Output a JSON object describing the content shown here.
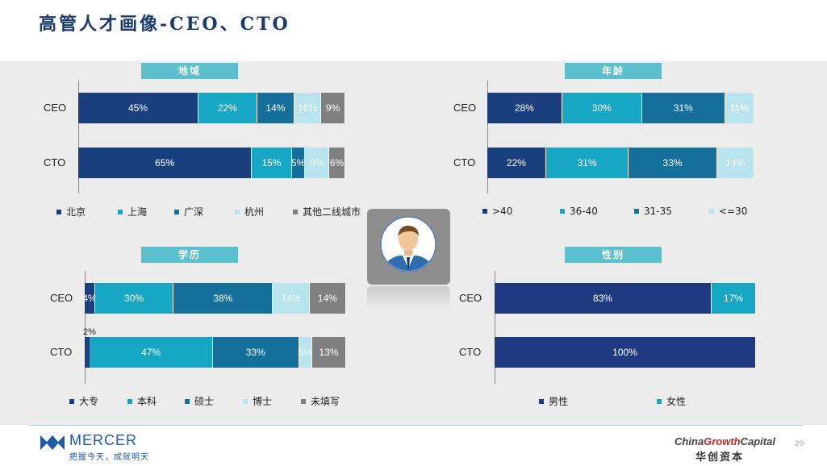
{
  "title": "高管人才画像-CEO、CTO",
  "charts": [
    {
      "id": "region",
      "title": "地域",
      "type": "stacked-bar-100",
      "rows": [
        {
          "label": "CEO",
          "values": [
            45,
            22,
            14,
            10,
            9
          ]
        },
        {
          "label": "CTO",
          "values": [
            65,
            15,
            5,
            9,
            6
          ]
        }
      ],
      "series": [
        {
          "name": "北京",
          "color": "#1a3f7f"
        },
        {
          "name": "上海",
          "color": "#17a6c3"
        },
        {
          "name": "广深",
          "color": "#14709a"
        },
        {
          "name": "杭州",
          "color": "#b8e4ee"
        },
        {
          "name": "其他二线城市",
          "color": "#808080"
        }
      ]
    },
    {
      "id": "age",
      "title": "年龄",
      "type": "stacked-bar-100",
      "rows": [
        {
          "label": "CEO",
          "values": [
            28,
            30,
            31,
            11
          ]
        },
        {
          "label": "CTO",
          "values": [
            22,
            31,
            33,
            14
          ]
        }
      ],
      "series": [
        {
          "name": ">40",
          "color": "#1a3f7f"
        },
        {
          "name": "36-40",
          "color": "#17a6c3"
        },
        {
          "name": "31-35",
          "color": "#14709a"
        },
        {
          "name": "<=30",
          "color": "#b8e4ee"
        }
      ]
    },
    {
      "id": "education",
      "title": "学历",
      "type": "stacked-bar-100",
      "rows": [
        {
          "label": "CEO",
          "values": [
            4,
            30,
            38,
            14,
            14
          ]
        },
        {
          "label": "CTO",
          "values": [
            2,
            47,
            33,
            5,
            13
          ]
        }
      ],
      "series": [
        {
          "name": "大专",
          "color": "#1a3f7f"
        },
        {
          "name": "本科",
          "color": "#17a6c3"
        },
        {
          "name": "硕士",
          "color": "#14709a"
        },
        {
          "name": "博士",
          "color": "#b8e4ee"
        },
        {
          "name": "未填写",
          "color": "#808080"
        }
      ]
    },
    {
      "id": "gender",
      "title": "性别",
      "type": "stacked-bar-100",
      "rows": [
        {
          "label": "CEO",
          "values": [
            83,
            17
          ]
        },
        {
          "label": "CTO",
          "values": [
            100,
            0
          ]
        }
      ],
      "series": [
        {
          "name": "男性",
          "color": "#1f3a80"
        },
        {
          "name": "女性",
          "color": "#17a6c3"
        }
      ]
    }
  ],
  "footer": {
    "logo_text": "MERCER",
    "logo_sub": "把握今天，成就明天",
    "partner_left": "China",
    "partner_mid": "Growth",
    "partner_right": "Capital",
    "partner_sub": "华创资本",
    "page": "29"
  }
}
